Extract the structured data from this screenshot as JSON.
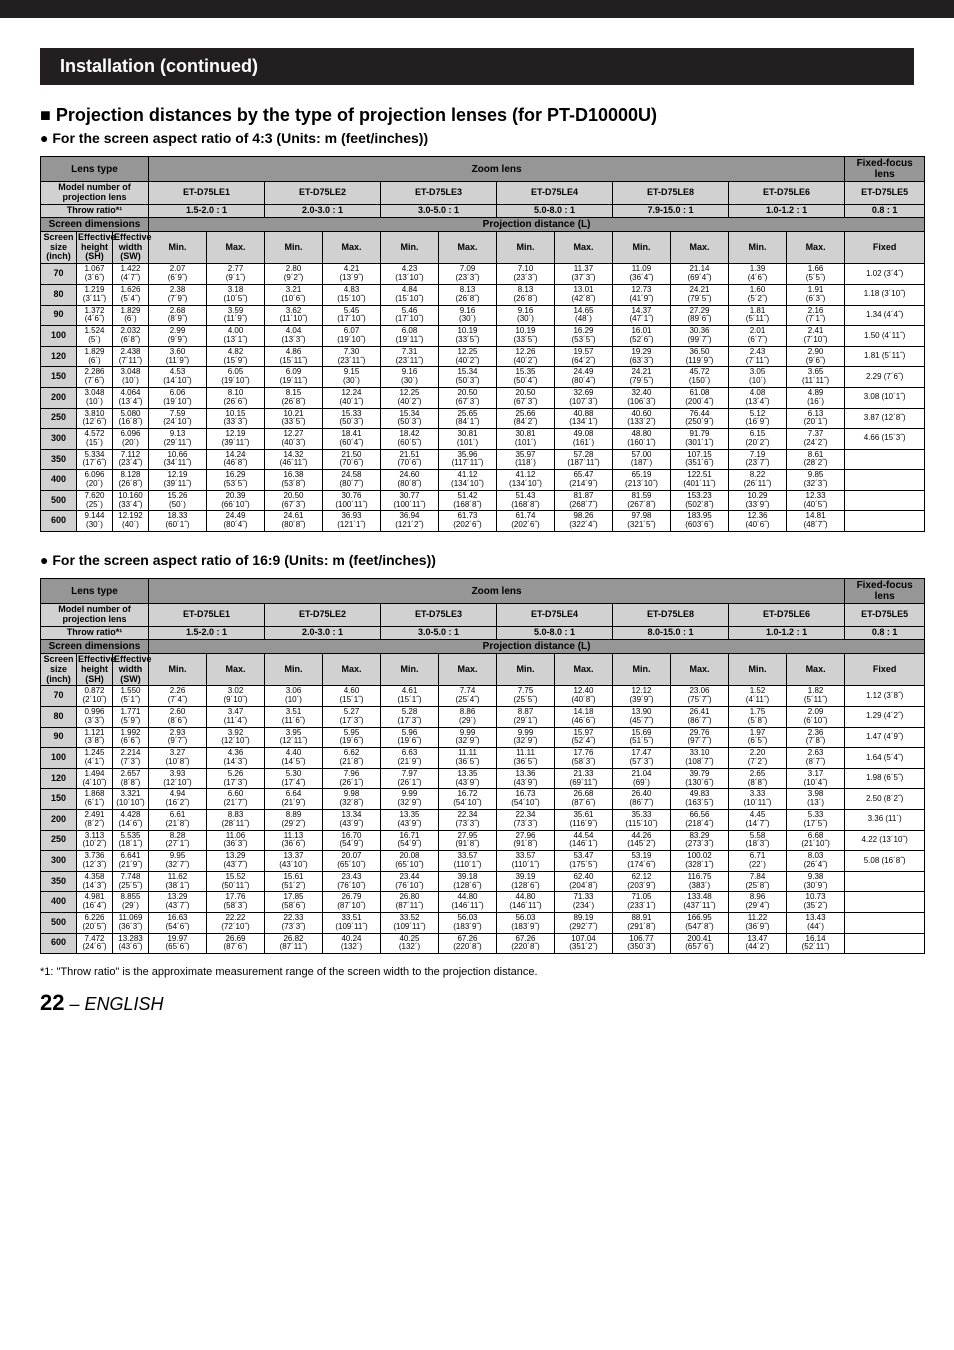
{
  "header": "Installation (continued)",
  "section_title": "Projection distances by the type of projection lenses (for PT-D10000U)",
  "subtitle_43": "For the screen aspect ratio of 4:3 (Units: m (feet/inches))",
  "subtitle_169": "For the screen aspect ratio of 16:9 (Units: m (feet/inches))",
  "footnote": "*1: \"Throw ratio\" is the approximate measurement range of the screen width to the projection distance.",
  "page_number": "22",
  "lang": " – ENGLISH",
  "labels": {
    "lens_type": "Lens type",
    "zoom_lens": "Zoom lens",
    "fixed_focus": "Fixed-focus lens",
    "model_number": "Model number of projection lens",
    "throw_ratio": "Throw ratio*¹",
    "screen_dim": "Screen dimensions",
    "proj_dist": "Projection distance (L)",
    "screen_size": "Screen size (inch)",
    "eff_height": "Effective height (SH)",
    "eff_width": "Effective width (SW)",
    "min": "Min.",
    "max": "Max.",
    "fixed": "Fixed"
  },
  "lens_models": [
    "ET-D75LE1",
    "ET-D75LE2",
    "ET-D75LE3",
    "ET-D75LE4",
    "ET-D75LE8",
    "ET-D75LE6",
    "ET-D75LE5"
  ],
  "throw_43": [
    "1.5-2.0 : 1",
    "2.0-3.0 : 1",
    "3.0-5.0 : 1",
    "5.0-8.0 : 1",
    "7.9-15.0 : 1",
    "1.0-1.2 : 1",
    "0.8 : 1"
  ],
  "throw_169": [
    "1.5-2.0 : 1",
    "2.0-3.0 : 1",
    "3.0-5.0 : 1",
    "5.0-8.0 : 1",
    "8.0-15.0 : 1",
    "1.0-1.2 : 1",
    "0.8 : 1"
  ],
  "table43_rows": [
    [
      "70",
      "1.067\n(3´6˝)",
      "1.422\n(4´7˝)",
      "2.07\n(6´9˝)",
      "2.77\n(9´1˝)",
      "2.80\n(9´2˝)",
      "4.21\n(13´9˝)",
      "4.23\n(13´10˝)",
      "7.09\n(23´3˝)",
      "7.10\n(23´3˝)",
      "11.37\n(37´3˝)",
      "11.09\n(36´4˝)",
      "21.14\n(69´4˝)",
      "1.39\n(4´6˝)",
      "1.66\n(5´5˝)",
      "1.02 (3´4˝)"
    ],
    [
      "80",
      "1.219\n(3´11˝)",
      "1.626\n(5´4˝)",
      "2.38\n(7´9˝)",
      "3.18\n(10´5˝)",
      "3.21\n(10´6˝)",
      "4.83\n(15´10˝)",
      "4.84\n(15´10˝)",
      "8.13\n(26´8˝)",
      "8.13\n(26´8˝)",
      "13.01\n(42´8˝)",
      "12.73\n(41´9˝)",
      "24.21\n(79´5˝)",
      "1.60\n(5´2˝)",
      "1.91\n(6´3˝)",
      "1.18 (3´10˝)"
    ],
    [
      "90",
      "1.372\n(4´6˝)",
      "1.829\n(6´)",
      "2.68\n(8´9˝)",
      "3.59\n(11´9˝)",
      "3.62\n(11´10˝)",
      "5.45\n(17´10˝)",
      "5.46\n(17´10˝)",
      "9.16\n(30´)",
      "9.16\n(30´)",
      "14.65\n(48´)",
      "14.37\n(47´1˝)",
      "27.29\n(89´6˝)",
      "1.81\n(5´11˝)",
      "2.16\n(7´1˝)",
      "1.34 (4´4˝)"
    ],
    [
      "100",
      "1.524\n(5´)",
      "2.032\n(6´8˝)",
      "2.99\n(9´9˝)",
      "4.00\n(13´1˝)",
      "4.04\n(13´3˝)",
      "6.07\n(19´10˝)",
      "6.08\n(19´11˝)",
      "10.19\n(33´5˝)",
      "10.19\n(33´5˝)",
      "16.29\n(53´5˝)",
      "16.01\n(52´6˝)",
      "30.36\n(99´7˝)",
      "2.01\n(6´7˝)",
      "2.41\n(7´10˝)",
      "1.50 (4´11˝)"
    ],
    [
      "120",
      "1.829\n(6´)",
      "2.438\n(7´11˝)",
      "3.60\n(11´9˝)",
      "4.82\n(15´9˝)",
      "4.86\n(15´11˝)",
      "7.30\n(23´11˝)",
      "7.31\n(23´11˝)",
      "12.25\n(40´2˝)",
      "12.26\n(40´2˝)",
      "19.57\n(64´2˝)",
      "19.29\n(63´3˝)",
      "36.50\n(119´9˝)",
      "2.43\n(7´11˝)",
      "2.90\n(9´6˝)",
      "1.81 (5´11˝)"
    ],
    [
      "150",
      "2.286\n(7´6˝)",
      "3.048\n(10´)",
      "4.53\n(14´10˝)",
      "6.05\n(19´10˝)",
      "6.09\n(19´11˝)",
      "9.15\n(30´)",
      "9.16\n(30´)",
      "15.34\n(50´3˝)",
      "15.35\n(50´4˝)",
      "24.49\n(80´4˝)",
      "24.21\n(79´5˝)",
      "45.72\n(150´)",
      "3.05\n(10´)",
      "3.65\n(11´11˝)",
      "2.29 (7´6˝)"
    ],
    [
      "200",
      "3.048\n(10´)",
      "4.064\n(13´4˝)",
      "6.06\n(19´10˝)",
      "8.10\n(26´6˝)",
      "8.15\n(26´8˝)",
      "12.24\n(40´1˝)",
      "12.25\n(40´2˝)",
      "20.50\n(67´3˝)",
      "20.50\n(67´3˝)",
      "32.69\n(107´3˝)",
      "32.40\n(106´3˝)",
      "61.08\n(200´4˝)",
      "4.08\n(13´4˝)",
      "4.89\n(16´)",
      "3.08 (10´1˝)"
    ],
    [
      "250",
      "3.810\n(12´6˝)",
      "5.080\n(16´8˝)",
      "7.59\n(24´10˝)",
      "10.15\n(33´3˝)",
      "10.21\n(33´5˝)",
      "15.33\n(50´3˝)",
      "15.34\n(50´3˝)",
      "25.65\n(84´1˝)",
      "25.66\n(84´2˝)",
      "40.88\n(134´1˝)",
      "40.60\n(133´2˝)",
      "76.44\n(250´9˝)",
      "5.12\n(16´9˝)",
      "6.13\n(20´1˝)",
      "3.87 (12´8˝)"
    ],
    [
      "300",
      "4.572\n(15´)",
      "6.096\n(20´)",
      "9.13\n(29´11˝)",
      "12.19\n(39´11˝)",
      "12.27\n(40´3˝)",
      "18.41\n(60´4˝)",
      "18.42\n(60´5˝)",
      "30.81\n(101´)",
      "30.81\n(101´)",
      "49.08\n(161´)",
      "48.80\n(160´1˝)",
      "91.79\n(301´1˝)",
      "6.15\n(20´2˝)",
      "7.37\n(24´2˝)",
      "4.66 (15´3˝)"
    ],
    [
      "350",
      "5.334\n(17´6˝)",
      "7.112\n(23´4˝)",
      "10.66\n(34´11˝)",
      "14.24\n(46´8˝)",
      "14.32\n(46´11˝)",
      "21.50\n(70´6˝)",
      "21.51\n(70´6˝)",
      "35.96\n(117´11˝)",
      "35.97\n(118´)",
      "57.28\n(187´11˝)",
      "57.00\n(187´)",
      "107.15\n(351´6˝)",
      "7.19\n(23´7˝)",
      "8.61\n(28´2˝)",
      ""
    ],
    [
      "400",
      "6.096\n(20´)",
      "8.128\n(26´8˝)",
      "12.19\n(39´11˝)",
      "16.29\n(53´5˝)",
      "16.38\n(53´8˝)",
      "24.58\n(80´7˝)",
      "24.60\n(80´8˝)",
      "41.12\n(134´10˝)",
      "41.12\n(134´10˝)",
      "65.47\n(214´9˝)",
      "65.19\n(213´10˝)",
      "122.51\n(401´11˝)",
      "8.22\n(26´11˝)",
      "9.85\n(32´3˝)",
      ""
    ],
    [
      "500",
      "7.620\n(25´)",
      "10.160\n(33´4˝)",
      "15.26\n(50´)",
      "20.39\n(66´10˝)",
      "20.50\n(67´3˝)",
      "30.76\n(100´11˝)",
      "30.77\n(100´11˝)",
      "51.42\n(168´8˝)",
      "51.43\n(168´8˝)",
      "81.87\n(268´7˝)",
      "81.59\n(267´8˝)",
      "153.23\n(502´8˝)",
      "10.29\n(33´9˝)",
      "12.33\n(40´5˝)",
      ""
    ],
    [
      "600",
      "9.144\n(30´)",
      "12.192\n(40´)",
      "18.33\n(60´1˝)",
      "24.49\n(80´4˝)",
      "24.61\n(80´8˝)",
      "36.93\n(121´1˝)",
      "36.94\n(121´2˝)",
      "61.73\n(202´6˝)",
      "61.74\n(202´6˝)",
      "98.26\n(322´4˝)",
      "97.98\n(321´5˝)",
      "183.95\n(603´6˝)",
      "12.36\n(40´6˝)",
      "14.81\n(48´7˝)",
      ""
    ]
  ],
  "table169_rows": [
    [
      "70",
      "0.872\n(2´10˝)",
      "1.550\n(5´1˝)",
      "2.26\n(7´4˝)",
      "3.02\n(9´10˝)",
      "3.06\n(10´)",
      "4.60\n(15´1˝)",
      "4.61\n(15´1˝)",
      "7.74\n(25´4˝)",
      "7.75\n(25´5˝)",
      "12.40\n(40´8˝)",
      "12.12\n(39´9˝)",
      "23.06\n(75´7˝)",
      "1.52\n(4´11˝)",
      "1.82\n(5´11˝)",
      "1.12  (3´8˝)"
    ],
    [
      "80",
      "0.996\n(3´3˝)",
      "1.771\n(5´9˝)",
      "2.60\n(8´6˝)",
      "3.47\n(11´4˝)",
      "3.51\n(11´6˝)",
      "5.27\n(17´3˝)",
      "5.28\n(17´3˝)",
      "8.86\n(29´)",
      "8.87\n(29´1˝)",
      "14.18\n(46´6˝)",
      "13.90\n(45´7˝)",
      "26.41\n(86´7˝)",
      "1.75\n(5´8˝)",
      "2.09\n(6´10˝)",
      "1.29  (4´2˝)"
    ],
    [
      "90",
      "1.121\n(3´8˝)",
      "1.992\n(6´6˝)",
      "2.93\n(9´7˝)",
      "3.92\n(12´10˝)",
      "3.95\n(12´11˝)",
      "5.95\n(19´6˝)",
      "5.96\n(19´6˝)",
      "9.99\n(32´9˝)",
      "9.99\n(32´9˝)",
      "15.97\n(52´4˝)",
      "15.69\n(51´5˝)",
      "29.76\n(97´7˝)",
      "1.97\n(6´5˝)",
      "2.36\n(7´8˝)",
      "1.47  (4´9˝)"
    ],
    [
      "100",
      "1.245\n(4´1˝)",
      "2.214\n(7´3˝)",
      "3.27\n(10´8˝)",
      "4.36\n(14´3˝)",
      "4.40\n(14´5˝)",
      "6.62\n(21´8˝)",
      "6.63\n(21´9˝)",
      "11.11\n(36´5˝)",
      "11.11\n(36´5˝)",
      "17.76\n(58´3˝)",
      "17.47\n(57´3˝)",
      "33.10\n(108´7˝)",
      "2.20\n(7´2˝)",
      "2.63\n(8´7˝)",
      "1.64  (5´4˝)"
    ],
    [
      "120",
      "1.494\n(4´10˝)",
      "2.657\n(8´8˝)",
      "3.93\n(12´10˝)",
      "5.26\n(17´3˝)",
      "5.30\n(17´4˝)",
      "7.96\n(26´1˝)",
      "7.97\n(26´1˝)",
      "13.35\n(43´9˝)",
      "13.36\n(43´9˝)",
      "21.33\n(69´11˝)",
      "21.04\n(69´)",
      "39.79\n(130´6˝)",
      "2.65\n(8´8˝)",
      "3.17\n(10´4˝)",
      "1.98  (6´5˝)"
    ],
    [
      "150",
      "1.868\n(6´1˝)",
      "3.321\n(10´10˝)",
      "4.94\n(16´2˝)",
      "6.60\n(21´7˝)",
      "6.64\n(21´9˝)",
      "9.98\n(32´8˝)",
      "9.99\n(32´9˝)",
      "16.72\n(54´10˝)",
      "16.73\n(54´10˝)",
      "26.68\n(87´6˝)",
      "26.40\n(86´7˝)",
      "49.83\n(163´5˝)",
      "3.33\n(10´11˝)",
      "3.98\n(13´)",
      "2.50  (8´2˝)"
    ],
    [
      "200",
      "2.491\n(8´2˝)",
      "4.428\n(14´6˝)",
      "6.61\n(21´8˝)",
      "8.83\n(28´11˝)",
      "8.89\n(29´2˝)",
      "13.34\n(43´9˝)",
      "13.35\n(43´9˝)",
      "22.34\n(73´3˝)",
      "22.34\n(73´3˝)",
      "35.61\n(116´9˝)",
      "35.33\n(115´10˝)",
      "66.56\n(218´4˝)",
      "4.45\n(14´7˝)",
      "5.33\n(17´5˝)",
      "3.36  (11´)"
    ],
    [
      "250",
      "3.113\n(10´2˝)",
      "5.535\n(18´1˝)",
      "8.28\n(27´1˝)",
      "11.06\n(36´3˝)",
      "11.13\n(36´6˝)",
      "16.70\n(54´9˝)",
      "16.71\n(54´9˝)",
      "27.95\n(91´8˝)",
      "27.96\n(91´8˝)",
      "44.54\n(146´1˝)",
      "44.26\n(145´2˝)",
      "83.29\n(273´3˝)",
      "5.58\n(18´3˝)",
      "6.68\n(21´10˝)",
      "4.22  (13´10˝)"
    ],
    [
      "300",
      "3.736\n(12´3˝)",
      "6.641\n(21´9˝)",
      "9.95\n(32´7˝)",
      "13.29\n(43´7˝)",
      "13.37\n(43´10˝)",
      "20.07\n(65´10˝)",
      "20.08\n(65´10˝)",
      "33.57\n(110´1˝)",
      "33.57\n(110´1˝)",
      "53.47\n(175´5˝)",
      "53.19\n(174´6˝)",
      "100.02\n(328´1˝)",
      "6.71\n(22´)",
      "8.03\n(26´4˝)",
      "5.08  (16´8˝)"
    ],
    [
      "350",
      "4.358\n(14´3˝)",
      "7.748\n(25´5˝)",
      "11.62\n(38´1˝)",
      "15.52\n(50´11˝)",
      "15.61\n(51´2˝)",
      "23.43\n(76´10˝)",
      "23.44\n(76´10˝)",
      "39.18\n(128´6˝)",
      "39.19\n(128´6˝)",
      "62.40\n(204´8˝)",
      "62.12\n(203´9˝)",
      "116.75\n(383´)",
      "7.84\n(25´8˝)",
      "9.38\n(30´9˝)",
      ""
    ],
    [
      "400",
      "4.981\n(16´4˝)",
      "8.855\n(29´)",
      "13.29\n(43´7˝)",
      "17.76\n(58´3˝)",
      "17.85\n(58´6˝)",
      "26.79\n(87´10˝)",
      "26.80\n(87´11˝)",
      "44.80\n(146´11˝)",
      "44.80\n(146´11˝)",
      "71.33\n(234´)",
      "71.05\n(233´1˝)",
      "133.48\n(437´11˝)",
      "8.96\n(29´4˝)",
      "10.73\n(35´2˝)",
      ""
    ],
    [
      "500",
      "6.226\n(20´5˝)",
      "11.069\n(36´3˝)",
      "16.63\n(54´6˝)",
      "22.22\n(72´10˝)",
      "22.33\n(73´3˝)",
      "33.51\n(109´11˝)",
      "33.52\n(109´11˝)",
      "56.03\n(183´9˝)",
      "56.03\n(183´9˝)",
      "89.19\n(292´7˝)",
      "88.91\n(291´8˝)",
      "166.95\n(547´8˝)",
      "11.22\n(36´9˝)",
      "13.43\n(44´)",
      ""
    ],
    [
      "600",
      "7.472\n(24´6˝)",
      "13.283\n(43´6˝)",
      "19.97\n(65´6˝)",
      "26.69\n(87´6˝)",
      "26.82\n(87´11˝)",
      "40.24\n(132´)",
      "40.25\n(132´)",
      "67.26\n(220´8˝)",
      "67.26\n(220´8˝)",
      "107.04\n(351´2˝)",
      "106.77\n(350´3˝)",
      "200.41\n(657´6˝)",
      "13.47\n(44´2˝)",
      "16.14\n(52´11˝)",
      ""
    ]
  ]
}
